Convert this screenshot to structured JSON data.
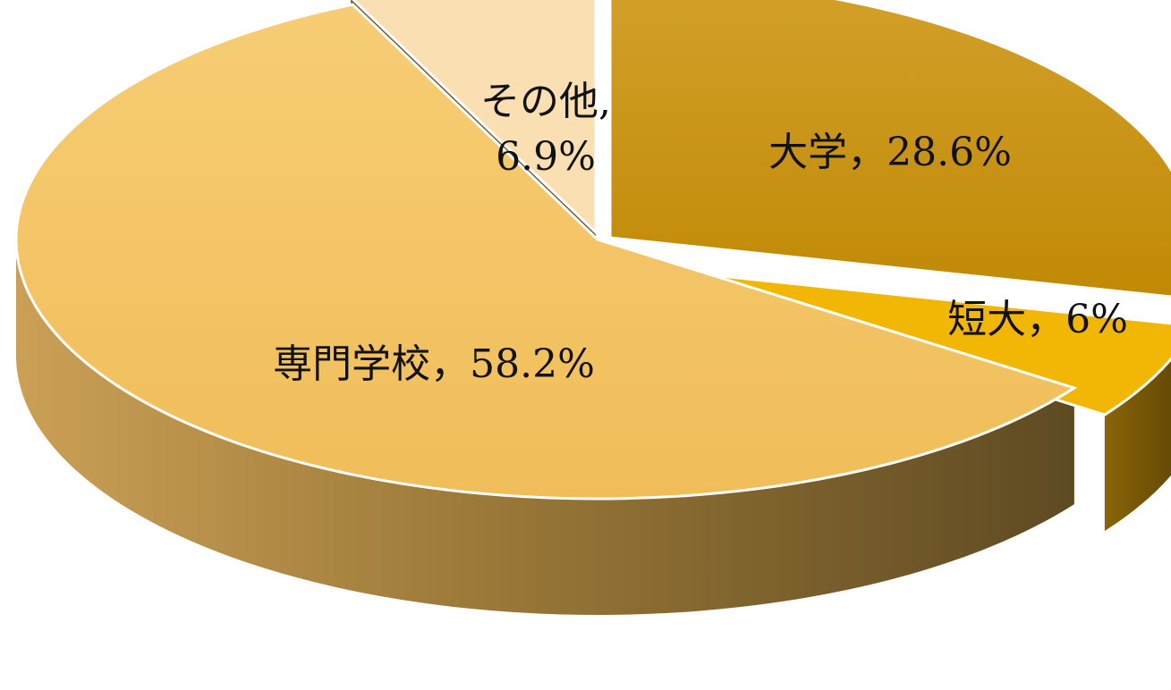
{
  "chart_data": {
    "type": "pie",
    "title": "",
    "legend": "none",
    "slices": [
      {
        "label": "大学",
        "value": 28.6,
        "label_text": "大学，28.6%",
        "color": "#c8920a"
      },
      {
        "label": "短大",
        "value": 6.0,
        "label_text": "短大，6%",
        "color": "#f2b705"
      },
      {
        "label": "専門学校",
        "value": 58.2,
        "label_text": "専門学校，58.2%",
        "color": "#f5c468"
      },
      {
        "label": "その他",
        "value": 6.9,
        "label_text_lines": [
          "その他,",
          "6.9%"
        ],
        "color": "#fadfb3"
      }
    ]
  }
}
